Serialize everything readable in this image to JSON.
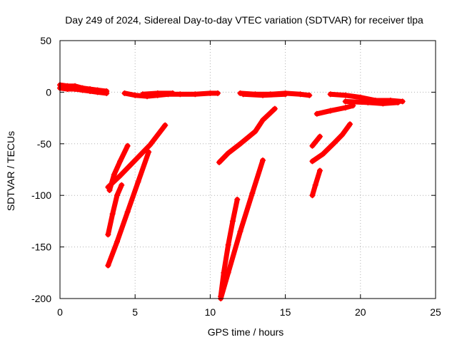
{
  "chart_data": {
    "type": "scatter",
    "title": "Day 249 of 2024, Sidereal Day-to-day VTEC variation (SDTVAR) for receiver tlpa",
    "xlabel": "GPS time / hours",
    "ylabel": "SDTVAR / TECUs",
    "xlim": [
      0,
      25
    ],
    "ylim": [
      -200,
      50
    ],
    "xticks": [
      "0",
      "5",
      "10",
      "15",
      "20",
      "25"
    ],
    "yticks": [
      "50",
      "0",
      "-50",
      "-100",
      "-150",
      "-200"
    ],
    "grid": true,
    "series_color": "#ff0000",
    "arcs": [
      {
        "points": [
          [
            0.0,
            7
          ],
          [
            0.5,
            6
          ],
          [
            1.0,
            6
          ],
          [
            1.5,
            4
          ],
          [
            2.0,
            3
          ],
          [
            2.5,
            2
          ],
          [
            3.1,
            1
          ]
        ]
      },
      {
        "points": [
          [
            0.0,
            4
          ],
          [
            0.5,
            3
          ],
          [
            1.0,
            3
          ],
          [
            1.5,
            2
          ],
          [
            2.0,
            1
          ],
          [
            2.5,
            0
          ],
          [
            3.1,
            -1
          ]
        ]
      },
      {
        "points": [
          [
            4.3,
            -1
          ],
          [
            5.0,
            -3
          ],
          [
            5.8,
            -4
          ],
          [
            6.5,
            -3
          ],
          [
            7.2,
            -2
          ],
          [
            8.0,
            -2
          ],
          [
            9.0,
            -2
          ],
          [
            10.0,
            -1
          ],
          [
            10.5,
            -1
          ]
        ]
      },
      {
        "points": [
          [
            5.5,
            -2
          ],
          [
            6.5,
            -1
          ],
          [
            7.5,
            -1
          ]
        ]
      },
      {
        "points": [
          [
            12.0,
            -1
          ],
          [
            13.0,
            -2
          ],
          [
            14.0,
            -2
          ],
          [
            15.0,
            -1
          ],
          [
            16.0,
            -2
          ],
          [
            16.6,
            -3
          ]
        ]
      },
      {
        "points": [
          [
            12.2,
            -2
          ],
          [
            13.5,
            -3
          ],
          [
            15.0,
            -2
          ]
        ]
      },
      {
        "points": [
          [
            18.0,
            -2
          ],
          [
            19.0,
            -3
          ],
          [
            20.0,
            -5
          ],
          [
            21.0,
            -8
          ],
          [
            22.0,
            -8
          ],
          [
            22.8,
            -9
          ]
        ]
      },
      {
        "points": [
          [
            19.0,
            -9
          ],
          [
            20.5,
            -10
          ],
          [
            21.5,
            -11
          ],
          [
            22.5,
            -10
          ]
        ]
      },
      {
        "points": [
          [
            17.1,
            -21
          ],
          [
            18.0,
            -18
          ],
          [
            19.0,
            -15
          ],
          [
            19.5,
            -13
          ]
        ]
      },
      {
        "points": [
          [
            3.2,
            -92
          ],
          [
            4.0,
            -81
          ],
          [
            5.0,
            -66
          ],
          [
            6.0,
            -51
          ],
          [
            7.0,
            -32
          ]
        ]
      },
      {
        "points": [
          [
            3.3,
            -95
          ],
          [
            3.6,
            -80
          ],
          [
            4.0,
            -67
          ],
          [
            4.5,
            -52
          ]
        ]
      },
      {
        "points": [
          [
            3.2,
            -138
          ],
          [
            3.5,
            -118
          ],
          [
            3.8,
            -100
          ],
          [
            4.1,
            -90
          ]
        ]
      },
      {
        "points": [
          [
            3.2,
            -168
          ],
          [
            3.8,
            -145
          ],
          [
            4.5,
            -116
          ],
          [
            5.2,
            -87
          ],
          [
            5.9,
            -58
          ]
        ]
      },
      {
        "points": [
          [
            10.6,
            -68
          ],
          [
            11.2,
            -59
          ],
          [
            12.0,
            -50
          ],
          [
            13.0,
            -38
          ],
          [
            13.5,
            -27
          ],
          [
            14.3,
            -16
          ]
        ]
      },
      {
        "points": [
          [
            10.7,
            -198
          ],
          [
            10.9,
            -175
          ],
          [
            11.2,
            -148
          ],
          [
            11.5,
            -125
          ],
          [
            11.8,
            -104
          ]
        ]
      },
      {
        "points": [
          [
            10.7,
            -200
          ],
          [
            11.2,
            -175
          ],
          [
            12.0,
            -135
          ],
          [
            12.8,
            -98
          ],
          [
            13.5,
            -66
          ]
        ]
      },
      {
        "points": [
          [
            16.8,
            -100
          ],
          [
            17.0,
            -90
          ],
          [
            17.3,
            -76
          ]
        ]
      },
      {
        "points": [
          [
            16.8,
            -52
          ],
          [
            17.3,
            -43
          ]
        ]
      },
      {
        "points": [
          [
            16.8,
            -67
          ],
          [
            17.5,
            -60
          ],
          [
            18.2,
            -50
          ],
          [
            18.8,
            -41
          ],
          [
            19.3,
            -31
          ]
        ]
      }
    ]
  }
}
